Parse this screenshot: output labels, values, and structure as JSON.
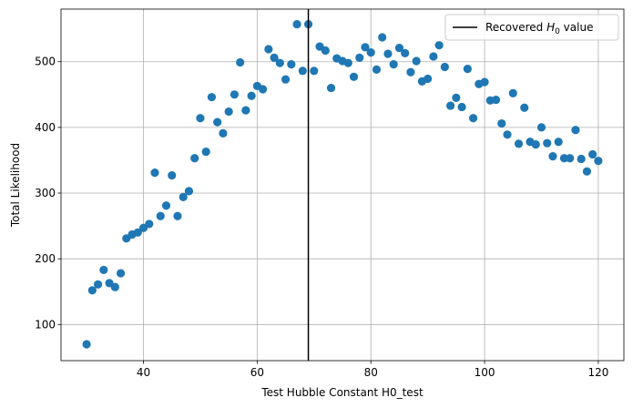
{
  "chart_data": {
    "type": "scatter",
    "xlabel": "Test Hubble Constant H0_test",
    "ylabel": "Total Likelihood",
    "xlim": [
      25.5,
      124.5
    ],
    "ylim": [
      45,
      580
    ],
    "xticks": [
      40,
      60,
      80,
      100,
      120
    ],
    "yticks": [
      100,
      200,
      300,
      400,
      500
    ],
    "grid": true,
    "legend_position": "top-right",
    "point_color": "#1f77b4",
    "line_color": "#000000",
    "vline": {
      "x": 69,
      "label_prefix": "Recovered ",
      "label_symbol": "H",
      "label_subscript": "0",
      "label_suffix": " value"
    },
    "points": [
      [
        30,
        70
      ],
      [
        31,
        152
      ],
      [
        32,
        161
      ],
      [
        33,
        183
      ],
      [
        34,
        163
      ],
      [
        35,
        157
      ],
      [
        36,
        178
      ],
      [
        37,
        231
      ],
      [
        38,
        237
      ],
      [
        39,
        240
      ],
      [
        40,
        247
      ],
      [
        41,
        253
      ],
      [
        42,
        331
      ],
      [
        43,
        265
      ],
      [
        44,
        281
      ],
      [
        45,
        327
      ],
      [
        46,
        265
      ],
      [
        47,
        294
      ],
      [
        48,
        303
      ],
      [
        49,
        353
      ],
      [
        50,
        414
      ],
      [
        51,
        363
      ],
      [
        52,
        446
      ],
      [
        53,
        408
      ],
      [
        54,
        391
      ],
      [
        55,
        424
      ],
      [
        56,
        450
      ],
      [
        57,
        499
      ],
      [
        58,
        426
      ],
      [
        59,
        448
      ],
      [
        60,
        463
      ],
      [
        61,
        458
      ],
      [
        62,
        519
      ],
      [
        63,
        506
      ],
      [
        64,
        498
      ],
      [
        65,
        473
      ],
      [
        66,
        496
      ],
      [
        67,
        557
      ],
      [
        68,
        486
      ],
      [
        69,
        557
      ],
      [
        70,
        486
      ],
      [
        71,
        523
      ],
      [
        72,
        517
      ],
      [
        73,
        460
      ],
      [
        74,
        505
      ],
      [
        75,
        501
      ],
      [
        76,
        498
      ],
      [
        77,
        477
      ],
      [
        78,
        506
      ],
      [
        79,
        522
      ],
      [
        80,
        514
      ],
      [
        81,
        488
      ],
      [
        82,
        537
      ],
      [
        83,
        512
      ],
      [
        84,
        496
      ],
      [
        85,
        521
      ],
      [
        86,
        513
      ],
      [
        87,
        484
      ],
      [
        88,
        501
      ],
      [
        89,
        470
      ],
      [
        90,
        474
      ],
      [
        91,
        508
      ],
      [
        92,
        525
      ],
      [
        93,
        492
      ],
      [
        94,
        433
      ],
      [
        95,
        445
      ],
      [
        96,
        431
      ],
      [
        97,
        489
      ],
      [
        98,
        414
      ],
      [
        99,
        466
      ],
      [
        100,
        469
      ],
      [
        101,
        441
      ],
      [
        102,
        442
      ],
      [
        103,
        406
      ],
      [
        104,
        389
      ],
      [
        105,
        452
      ],
      [
        106,
        375
      ],
      [
        107,
        430
      ],
      [
        108,
        378
      ],
      [
        109,
        374
      ],
      [
        110,
        400
      ],
      [
        111,
        376
      ],
      [
        112,
        356
      ],
      [
        113,
        378
      ],
      [
        114,
        353
      ],
      [
        115,
        353
      ],
      [
        116,
        396
      ],
      [
        117,
        352
      ],
      [
        118,
        333
      ],
      [
        119,
        359
      ],
      [
        120,
        349
      ]
    ]
  }
}
